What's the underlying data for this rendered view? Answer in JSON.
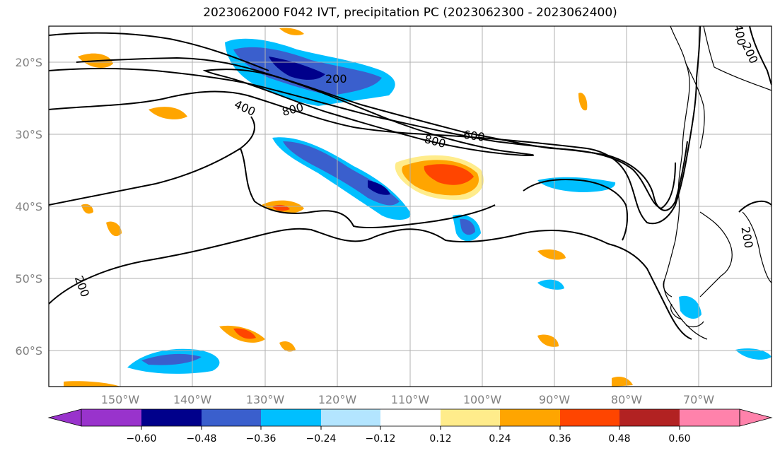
{
  "title": "2023062000 F042 IVT, precipitation PC (2023062300 - 2023062400)",
  "map": {
    "lon_labels": [
      "150°W",
      "140°W",
      "130°W",
      "120°W",
      "110°W",
      "100°W",
      "90°W",
      "80°W",
      "70°W"
    ],
    "lat_labels": [
      "20°S",
      "30°S",
      "40°S",
      "50°S",
      "60°S"
    ],
    "contour_labels": [
      "200",
      "400",
      "800",
      "600",
      "800",
      "200",
      "200",
      "200",
      "400"
    ],
    "grid": true
  },
  "colorbar": {
    "tick_labels": [
      "−0.60",
      "−0.48",
      "−0.36",
      "−0.24",
      "−0.12",
      "0.12",
      "0.24",
      "0.36",
      "0.48",
      "0.60"
    ],
    "colors": [
      "#9933cc",
      "#00008b",
      "#3a5fcd",
      "#00bfff",
      "#b3e5ff",
      "#ffffff",
      "#ffec8b",
      "#ffa500",
      "#ff4500",
      "#b22222",
      "#ff82ab"
    ]
  },
  "colors": {
    "grid": "#b0b0b0",
    "contour": "#000000",
    "coast": "#000000"
  }
}
